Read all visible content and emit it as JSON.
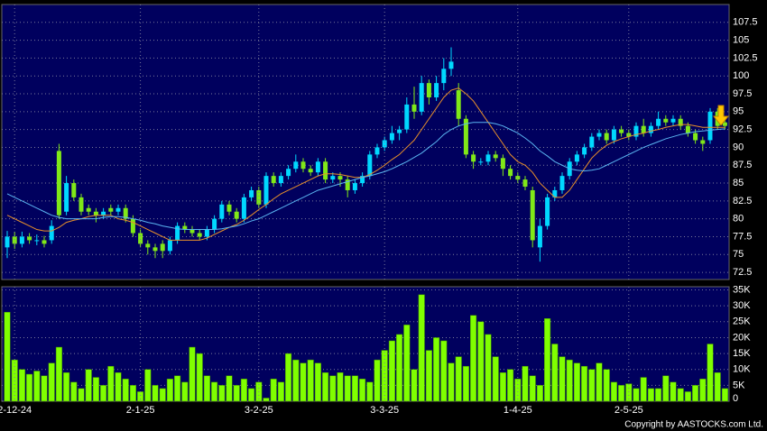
{
  "chart_data": [
    {
      "type": "candlestick",
      "up_color": "#00d8ff",
      "down_color": "#80e818",
      "open": [
        76,
        77.5,
        76.5,
        77.5,
        77,
        77,
        77,
        89.5,
        81,
        85,
        83,
        81.5,
        81,
        80.5,
        81.5,
        81,
        81.5,
        80,
        78,
        76.5,
        76,
        76.5,
        75.5,
        77,
        79,
        78.5,
        78,
        77.5,
        78.5,
        80,
        82,
        81,
        80,
        83,
        84,
        82,
        86,
        85,
        86,
        87,
        88,
        87,
        86.5,
        88,
        85.5,
        86,
        85.5,
        84,
        85,
        86,
        89,
        90,
        91,
        92,
        92.5,
        96,
        95,
        99,
        97,
        99,
        101,
        98,
        94,
        89,
        88,
        88,
        89,
        88.5,
        87,
        86,
        85.5,
        84,
        76,
        79,
        83,
        84,
        86,
        88,
        89,
        90,
        91.5,
        92,
        91,
        92.5,
        92,
        91.5,
        93,
        92,
        93,
        94,
        93.5,
        94,
        93,
        92,
        91,
        91,
        95,
        93.5
      ],
      "high": [
        78.3,
        78.2,
        78.2,
        78,
        77.8,
        77.6,
        79.8,
        90.5,
        86,
        85.5,
        83.5,
        82,
        81.5,
        81.5,
        82,
        82,
        82,
        80.5,
        78.5,
        77,
        76.5,
        77,
        77.5,
        79.5,
        79.5,
        79,
        78.5,
        79,
        80.5,
        82.5,
        82.5,
        81.5,
        83.5,
        84.5,
        84.5,
        86.5,
        86.5,
        86.5,
        87.5,
        89,
        88.5,
        87.5,
        88.5,
        88.5,
        86.5,
        86.5,
        86,
        85.5,
        86.5,
        89.5,
        90.5,
        91.5,
        93,
        93,
        97,
        98.5,
        100,
        99.5,
        100,
        102.5,
        104,
        99,
        94.5,
        89.5,
        88.5,
        89.5,
        89.5,
        89,
        87.5,
        86.5,
        86,
        84.5,
        80,
        83.5,
        84.5,
        86.5,
        88.5,
        89.5,
        90.5,
        92,
        92.5,
        92.5,
        93,
        93,
        92.5,
        93.5,
        94,
        93.5,
        95,
        94.5,
        94.5,
        94.5,
        93.5,
        92.5,
        91.5,
        95.5,
        95.5,
        93.8
      ],
      "low": [
        74.5,
        75.8,
        76,
        76.5,
        76.3,
        76,
        76.5,
        80,
        80.5,
        82.5,
        80.5,
        80.5,
        79.5,
        80,
        80.5,
        80.5,
        79.5,
        77.5,
        76,
        75,
        74.5,
        74.5,
        75,
        76.5,
        78,
        77.5,
        77,
        77,
        78,
        79.5,
        80.5,
        79.5,
        79.5,
        82.5,
        81.5,
        81.5,
        84.5,
        84.5,
        85.5,
        86.5,
        86.5,
        86,
        86,
        85,
        85,
        84.5,
        83,
        83.5,
        84.5,
        85.5,
        88.5,
        89.5,
        90.5,
        91,
        92,
        94,
        94.5,
        96,
        96.5,
        98,
        100,
        93,
        88.5,
        87,
        87.5,
        87.5,
        88,
        86,
        85.5,
        85,
        84,
        76,
        74,
        78.5,
        82.5,
        83.5,
        85.5,
        87.5,
        88.5,
        89.5,
        91,
        90.5,
        90.5,
        91.5,
        91,
        91,
        91.5,
        91.5,
        92.5,
        93,
        93,
        92.5,
        91.5,
        90.5,
        89.5,
        90.5,
        92.5,
        92.5
      ],
      "close": [
        77.5,
        76.5,
        77.5,
        77,
        77,
        76.5,
        79,
        80.5,
        85,
        83,
        81,
        81,
        80.5,
        81,
        81,
        81.5,
        80,
        78,
        76.5,
        76,
        75.5,
        75.5,
        77,
        79,
        78.5,
        78,
        77.5,
        78.5,
        80,
        82,
        81,
        80,
        83,
        84,
        82,
        86,
        85,
        86,
        87,
        88,
        87,
        86.5,
        88,
        85.5,
        86,
        85.5,
        84,
        85,
        86,
        89,
        90,
        91,
        92,
        92.5,
        96,
        95,
        99,
        97,
        99,
        101,
        102,
        94,
        89,
        88,
        88,
        89,
        88.5,
        87,
        86,
        85.5,
        84.5,
        77,
        79,
        83,
        84,
        86,
        88,
        89,
        90,
        91.5,
        92,
        91,
        92.5,
        92,
        91.5,
        93,
        92,
        93,
        94,
        93.5,
        94,
        93,
        92,
        91,
        90.5,
        95,
        93,
        93
      ],
      "series": [
        {
          "color": "#e8902a",
          "values": [
            80.5,
            80,
            79.5,
            79,
            78.5,
            78.3,
            78.3,
            78.8,
            79.5,
            79.8,
            80,
            80.3,
            80.5,
            80.5,
            80.5,
            80,
            79.8,
            79.5,
            79,
            78.5,
            78,
            77.5,
            77,
            77,
            77,
            77,
            77,
            77.3,
            77.8,
            78.3,
            78.8,
            79.2,
            79.8,
            80.5,
            81.3,
            82,
            82.8,
            83.5,
            84,
            84.5,
            85,
            85.5,
            86,
            86.3,
            86.3,
            86.2,
            86,
            85.8,
            85.8,
            86.2,
            86.8,
            87.5,
            88.3,
            89,
            90,
            91,
            92.5,
            94,
            95.5,
            97,
            98,
            98.3,
            97.5,
            96.5,
            95,
            93.5,
            92,
            90.5,
            89,
            88,
            87.5,
            86.5,
            85,
            84,
            83,
            83,
            84,
            85.5,
            87,
            88.5,
            89.5,
            90.3,
            90.8,
            91.2,
            91.5,
            91.8,
            92,
            92.3,
            92.5,
            92.8,
            93,
            93.2,
            93.2,
            93,
            92.8,
            92.8,
            92.8,
            92.8
          ]
        },
        {
          "color": "#5ab4f0",
          "values": [
            83.5,
            83,
            82.5,
            82,
            81.5,
            81,
            80.5,
            80.2,
            80,
            80,
            80,
            80,
            80,
            80.2,
            80.3,
            80.3,
            80.2,
            80,
            79.8,
            79.5,
            79.3,
            79,
            78.8,
            78.6,
            78.5,
            78.5,
            78.5,
            78.5,
            78.5,
            78.6,
            78.8,
            79,
            79.3,
            79.7,
            80,
            80.5,
            81,
            81.5,
            82,
            82.5,
            83,
            83.5,
            84,
            84.3,
            84.6,
            84.9,
            85.2,
            85.5,
            85.8,
            86,
            86.3,
            86.6,
            87,
            87.5,
            88,
            88.6,
            89.2,
            90,
            90.8,
            91.8,
            92.5,
            93,
            93.3,
            93.5,
            93.5,
            93.5,
            93.3,
            93,
            92.5,
            92,
            91.3,
            90.5,
            89.5,
            88.8,
            88,
            87.5,
            87,
            86.8,
            86.7,
            86.8,
            87,
            87.5,
            88,
            88.5,
            89,
            89.5,
            90,
            90.4,
            90.8,
            91.2,
            91.5,
            91.8,
            92,
            92.2,
            92.3,
            92.4,
            92.5,
            92.6
          ]
        }
      ],
      "ylim": [
        71.5,
        110
      ],
      "yticks": [
        72.5,
        75,
        77.5,
        80,
        82.5,
        85,
        87.5,
        90,
        92.5,
        95,
        97.5,
        100,
        102.5,
        105,
        107.5
      ],
      "grid": true
    },
    {
      "type": "bar",
      "color": "#80ff00",
      "categories": [
        null,
        "2-12-24",
        null,
        null,
        null,
        null,
        null,
        null,
        null,
        null,
        null,
        null,
        null,
        null,
        null,
        null,
        null,
        null,
        "2-1-25",
        null,
        null,
        null,
        null,
        null,
        null,
        null,
        null,
        null,
        null,
        null,
        null,
        null,
        null,
        null,
        "3-2-25",
        null,
        null,
        null,
        null,
        null,
        null,
        null,
        null,
        null,
        null,
        null,
        null,
        null,
        null,
        null,
        null,
        "3-3-25",
        null,
        null,
        null,
        null,
        null,
        null,
        null,
        null,
        null,
        null,
        null,
        null,
        null,
        null,
        null,
        null,
        null,
        "1-4-25",
        null,
        null,
        null,
        null,
        null,
        null,
        null,
        null,
        null,
        null,
        null,
        null,
        null,
        null,
        "2-5-25",
        null,
        null,
        null,
        null,
        null,
        null,
        null,
        null,
        null,
        null,
        null,
        null,
        null
      ],
      "values": [
        28000,
        13000,
        10000,
        8500,
        9500,
        8000,
        12000,
        17000,
        9000,
        6000,
        4000,
        10000,
        7500,
        5000,
        11000,
        9000,
        7000,
        5000,
        3000,
        10000,
        5000,
        4000,
        7000,
        8000,
        6000,
        17000,
        15000,
        8000,
        6000,
        5000,
        8000,
        5000,
        7000,
        4000,
        6000,
        1000,
        7000,
        6000,
        15000,
        13000,
        12000,
        13000,
        12000,
        9000,
        8000,
        9000,
        8000,
        8000,
        7000,
        6000,
        13000,
        16000,
        19000,
        21000,
        24000,
        10000,
        33500,
        16000,
        20000,
        19000,
        12000,
        14000,
        11000,
        27000,
        25000,
        21000,
        14000,
        9000,
        10000,
        7000,
        11000,
        8000,
        5000,
        26000,
        18000,
        14000,
        13000,
        12000,
        11000,
        10000,
        12000,
        10000,
        6000,
        5000,
        5500,
        4000,
        7500,
        4000,
        4000,
        8000,
        6000,
        4000,
        3000,
        5000,
        7000,
        18000,
        9000,
        4000
      ],
      "ylim": [
        0,
        36000
      ],
      "yticks": [
        {
          "value": 0,
          "label": "0"
        },
        {
          "value": 5000,
          "label": "5K"
        },
        {
          "value": 10000,
          "label": "10K"
        },
        {
          "value": 15000,
          "label": "15K"
        },
        {
          "value": 20000,
          "label": "20K"
        },
        {
          "value": 25000,
          "label": "25K"
        },
        {
          "value": 30000,
          "label": "30K"
        },
        {
          "value": 35000,
          "label": "35K"
        }
      ],
      "grid": true
    }
  ],
  "footer": {
    "copyright": "Copyright by AASTOCKS.com Ltd."
  }
}
